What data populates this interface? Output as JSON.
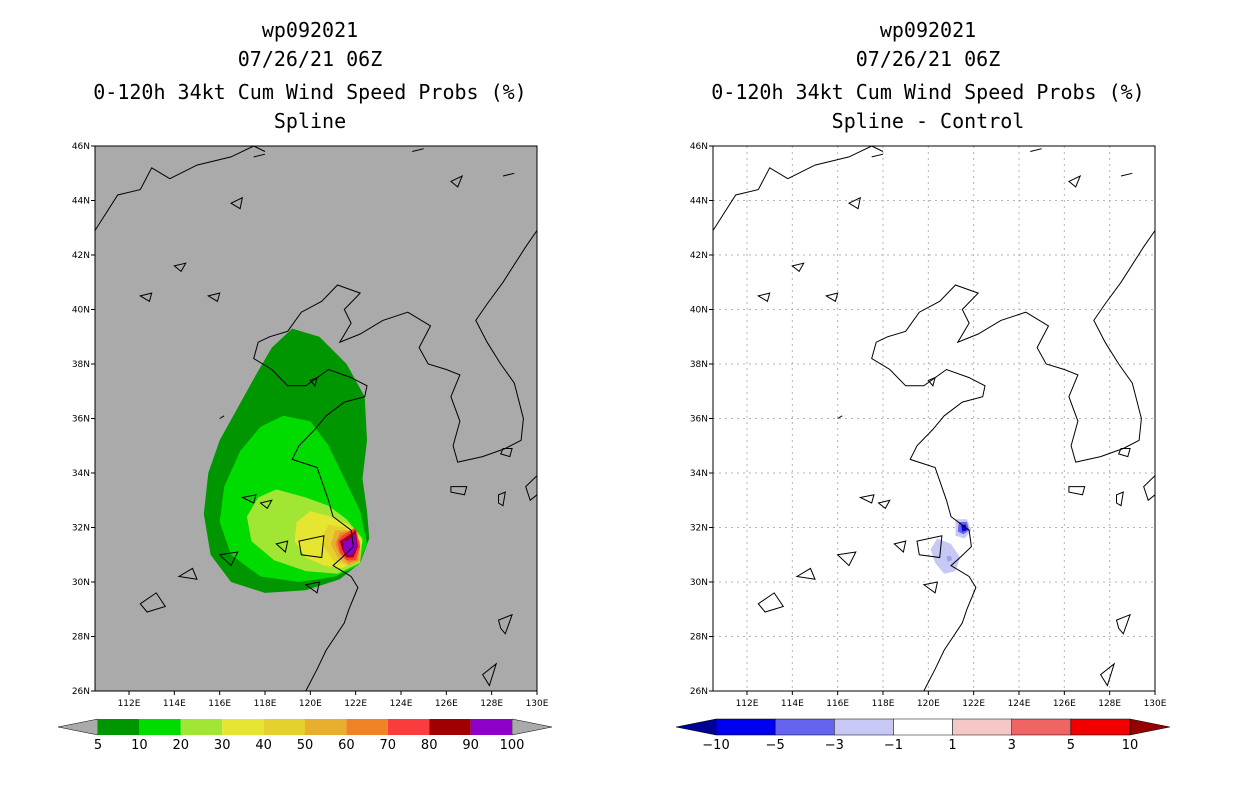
{
  "panels": [
    {
      "storm": "wp092021",
      "time": "07/26/21 06Z",
      "title": "0-120h 34kt Cum Wind Speed Probs (%)",
      "subtitle": "Spline",
      "background": "#aaaaaa"
    },
    {
      "storm": "wp092021",
      "time": "07/26/21 06Z",
      "title": "0-120h 34kt Cum Wind Speed Probs (%)",
      "subtitle": "Spline - Control",
      "background": "#ffffff"
    }
  ],
  "chart_data": [
    {
      "type": "heatmap",
      "title": "0-120h 34kt Cum Wind Speed Probs (%)",
      "subtitle": "Spline",
      "storm": "wp092021",
      "time": "07/26/21 06Z",
      "xlim": [
        110.5,
        130
      ],
      "ylim": [
        26,
        46
      ],
      "x_ticks": [
        "112E",
        "114E",
        "116E",
        "118E",
        "120E",
        "122E",
        "124E",
        "126E",
        "128E",
        "130E"
      ],
      "y_ticks": [
        "26N",
        "28N",
        "30N",
        "32N",
        "34N",
        "36N",
        "38N",
        "40N",
        "42N",
        "44N",
        "46N"
      ],
      "colorbar_labels": [
        "5",
        "10",
        "20",
        "30",
        "40",
        "50",
        "60",
        "70",
        "80",
        "90",
        "100"
      ],
      "colorbar_colors": [
        "#009600",
        "#00dc00",
        "#a0e632",
        "#e6e632",
        "#e6d02e",
        "#e6af2d",
        "#f08228",
        "#fa3c3c",
        "#a00000",
        "#8c00c8"
      ],
      "contours": [
        {
          "level": 5,
          "color": "#009600",
          "points": [
            [
              119.2,
              39.3
            ],
            [
              120.4,
              39.0
            ],
            [
              121.6,
              38.0
            ],
            [
              122.4,
              36.8
            ],
            [
              122.5,
              35.2
            ],
            [
              122.3,
              33.8
            ],
            [
              122.5,
              32.6
            ],
            [
              122.6,
              31.6
            ],
            [
              122.2,
              30.7
            ],
            [
              121.3,
              30.1
            ],
            [
              119.8,
              29.7
            ],
            [
              118.0,
              29.6
            ],
            [
              116.5,
              30.0
            ],
            [
              115.6,
              31.0
            ],
            [
              115.3,
              32.5
            ],
            [
              115.5,
              34.0
            ],
            [
              116.0,
              35.2
            ],
            [
              116.8,
              36.4
            ],
            [
              117.6,
              37.6
            ],
            [
              118.3,
              38.6
            ]
          ]
        },
        {
          "level": 10,
          "color": "#00dc00",
          "points": [
            [
              118.8,
              36.1
            ],
            [
              120.0,
              35.9
            ],
            [
              120.8,
              35.0
            ],
            [
              121.5,
              33.8
            ],
            [
              122.2,
              32.6
            ],
            [
              122.5,
              31.4
            ],
            [
              122.1,
              30.6
            ],
            [
              121.1,
              30.2
            ],
            [
              119.5,
              30.0
            ],
            [
              117.8,
              30.2
            ],
            [
              116.5,
              31.0
            ],
            [
              116.0,
              32.2
            ],
            [
              116.2,
              33.5
            ],
            [
              116.9,
              34.8
            ],
            [
              117.8,
              35.7
            ]
          ]
        },
        {
          "level": 20,
          "color": "#a0e632",
          "points": [
            [
              118.5,
              33.4
            ],
            [
              119.8,
              33.1
            ],
            [
              120.8,
              32.8
            ],
            [
              121.6,
              32.3
            ],
            [
              122.3,
              31.6
            ],
            [
              122.2,
              30.7
            ],
            [
              121.2,
              30.3
            ],
            [
              119.8,
              30.4
            ],
            [
              118.4,
              30.8
            ],
            [
              117.4,
              31.5
            ],
            [
              117.2,
              32.4
            ],
            [
              117.7,
              33.1
            ]
          ]
        },
        {
          "level": 30,
          "color": "#e6e632",
          "points": [
            [
              120.0,
              32.6
            ],
            [
              120.9,
              32.4
            ],
            [
              121.7,
              32.1
            ],
            [
              122.3,
              31.5
            ],
            [
              122.1,
              30.8
            ],
            [
              121.4,
              30.5
            ],
            [
              120.6,
              30.6
            ],
            [
              119.8,
              30.9
            ],
            [
              119.3,
              31.5
            ],
            [
              119.4,
              32.2
            ]
          ]
        },
        {
          "level": 40,
          "color": "#e6d02e",
          "points": [
            [
              120.8,
              32.1
            ],
            [
              121.5,
              32.0
            ],
            [
              122.1,
              31.6
            ],
            [
              122.2,
              30.9
            ],
            [
              121.6,
              30.6
            ],
            [
              121.0,
              30.8
            ],
            [
              120.6,
              31.3
            ],
            [
              120.6,
              31.8
            ]
          ]
        },
        {
          "level": 50,
          "color": "#e6af2d",
          "points": [
            [
              121.1,
              31.9
            ],
            [
              121.8,
              31.9
            ],
            [
              122.2,
              31.5
            ],
            [
              122.2,
              30.8
            ],
            [
              121.7,
              30.6
            ],
            [
              121.2,
              30.9
            ],
            [
              120.9,
              31.4
            ]
          ]
        },
        {
          "level": 60,
          "color": "#f08228",
          "points": [
            [
              121.3,
              31.8
            ],
            [
              121.9,
              31.9
            ],
            [
              122.2,
              31.4
            ],
            [
              122.1,
              30.8
            ],
            [
              121.7,
              30.7
            ],
            [
              121.3,
              31.0
            ],
            [
              121.1,
              31.4
            ]
          ]
        },
        {
          "level": 70,
          "color": "#fa3c3c",
          "points": [
            [
              121.4,
              31.7
            ],
            [
              122.0,
              32.0
            ],
            [
              122.2,
              31.3
            ],
            [
              122.0,
              30.8
            ],
            [
              121.6,
              30.8
            ],
            [
              121.3,
              31.1
            ],
            [
              121.2,
              31.5
            ]
          ]
        },
        {
          "level": 80,
          "color": "#a00000",
          "points": [
            [
              121.5,
              31.6
            ],
            [
              122.0,
              31.9
            ],
            [
              122.1,
              31.3
            ],
            [
              121.9,
              30.9
            ],
            [
              121.6,
              30.9
            ],
            [
              121.4,
              31.2
            ],
            [
              121.3,
              31.5
            ]
          ]
        },
        {
          "level": 90,
          "color": "#8c00c8",
          "points": [
            [
              121.6,
              31.5
            ],
            [
              122.0,
              31.8
            ],
            [
              122.05,
              31.3
            ],
            [
              121.85,
              31.0
            ],
            [
              121.55,
              31.0
            ],
            [
              121.45,
              31.3
            ],
            [
              121.5,
              31.4
            ],
            [
              121.4,
              31.55
            ]
          ]
        }
      ]
    },
    {
      "type": "heatmap",
      "title": "0-120h 34kt Cum Wind Speed Probs (%)",
      "subtitle": "Spline - Control",
      "storm": "wp092021",
      "time": "07/26/21 06Z",
      "xlim": [
        110.5,
        130
      ],
      "ylim": [
        26,
        46
      ],
      "x_ticks": [
        "112E",
        "114E",
        "116E",
        "118E",
        "120E",
        "122E",
        "124E",
        "126E",
        "128E",
        "130E"
      ],
      "y_ticks": [
        "26N",
        "28N",
        "30N",
        "32N",
        "34N",
        "36N",
        "38N",
        "40N",
        "42N",
        "44N",
        "46N"
      ],
      "colorbar_labels": [
        "-10",
        "-5",
        "-3",
        "-1",
        "1",
        "3",
        "5",
        "10"
      ],
      "colorbar_colors": [
        "#000096",
        "#0000f0",
        "#6464f0",
        "#c8c8f5",
        "#ffffff",
        "#f5c8c8",
        "#f06464",
        "#f00000",
        "#960000"
      ],
      "contours": [
        {
          "level": -1,
          "color": "#c8c8f5",
          "points": [
            [
              120.4,
              31.6
            ],
            [
              121.0,
              31.4
            ],
            [
              121.4,
              30.9
            ],
            [
              121.2,
              30.4
            ],
            [
              120.7,
              30.3
            ],
            [
              120.3,
              30.7
            ],
            [
              120.1,
              31.2
            ]
          ]
        },
        {
          "level": -3,
          "color": "#c8c8f5",
          "points": [
            [
              121.2,
              32.3
            ],
            [
              121.7,
              32.3
            ],
            [
              121.9,
              31.9
            ],
            [
              121.6,
              31.6
            ],
            [
              121.2,
              31.7
            ]
          ]
        },
        {
          "level": -3,
          "color": "#6464f0",
          "points": [
            [
              121.35,
              32.2
            ],
            [
              121.7,
              32.2
            ],
            [
              121.8,
              31.9
            ],
            [
              121.55,
              31.75
            ],
            [
              121.3,
              31.85
            ]
          ]
        },
        {
          "level": -5,
          "color": "#0000f0",
          "points": [
            [
              121.45,
              32.1
            ],
            [
              121.65,
              32.1
            ],
            [
              121.7,
              31.9
            ],
            [
              121.5,
              31.85
            ]
          ]
        },
        {
          "level": -3,
          "color": "#a0a0f0",
          "points": [
            [
              120.8,
              30.95
            ],
            [
              121.0,
              30.95
            ],
            [
              121.05,
              30.8
            ],
            [
              120.85,
              30.75
            ]
          ]
        }
      ]
    }
  ]
}
